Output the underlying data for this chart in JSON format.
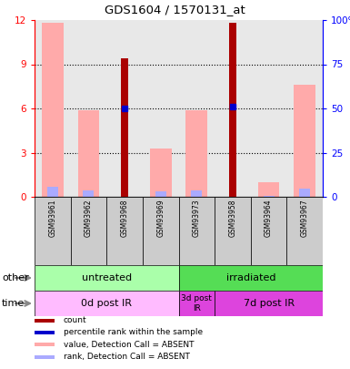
{
  "title": "GDS1604 / 1570131_at",
  "samples": [
    "GSM93961",
    "GSM93962",
    "GSM93968",
    "GSM93969",
    "GSM93973",
    "GSM93958",
    "GSM93964",
    "GSM93967"
  ],
  "count_values": [
    0,
    0,
    9.4,
    0,
    0,
    11.8,
    0,
    0
  ],
  "percentile_rank_values": [
    0,
    0,
    6.0,
    0,
    0,
    6.1,
    0,
    0
  ],
  "value_absent": [
    11.8,
    5.9,
    0,
    3.3,
    5.85,
    0,
    1.0,
    7.6
  ],
  "rank_absent": [
    5.75,
    3.5,
    0,
    3.2,
    3.5,
    0,
    0.55,
    4.55
  ],
  "count_color": "#aa0000",
  "percentile_color": "#0000cc",
  "value_absent_color": "#ffaaaa",
  "rank_absent_color": "#aaaaff",
  "ylim_left": [
    0,
    12
  ],
  "ylim_right": [
    0,
    100
  ],
  "yticks_left": [
    0,
    3,
    6,
    9,
    12
  ],
  "yticks_right": [
    0,
    25,
    50,
    75,
    100
  ],
  "ytick_labels_right": [
    "0",
    "25",
    "50",
    "75",
    "100%"
  ],
  "grid_lines": [
    3,
    6,
    9
  ],
  "other_groups": [
    {
      "label": "untreated",
      "start": 0,
      "end": 4,
      "color": "#aaffaa"
    },
    {
      "label": "irradiated",
      "start": 4,
      "end": 8,
      "color": "#55dd55"
    }
  ],
  "time_groups": [
    {
      "label": "0d post IR",
      "start": 0,
      "end": 4,
      "color": "#ffbbff"
    },
    {
      "label": "3d post\nIR",
      "start": 4,
      "end": 5,
      "color": "#dd44dd"
    },
    {
      "label": "7d post IR",
      "start": 5,
      "end": 8,
      "color": "#dd44dd"
    }
  ],
  "bar_width": 0.6,
  "count_bar_width": 0.22,
  "rank_bar_width": 0.3,
  "bg_color": "#ffffff",
  "plot_bg_color": "#ffffff",
  "col_bg_color": "#e8e8e8",
  "other_label": "other",
  "time_label": "time",
  "arrow_color": "#888888",
  "legend_items": [
    {
      "color": "#aa0000",
      "label": "count"
    },
    {
      "color": "#0000cc",
      "label": "percentile rank within the sample"
    },
    {
      "color": "#ffaaaa",
      "label": "value, Detection Call = ABSENT"
    },
    {
      "color": "#aaaaff",
      "label": "rank, Detection Call = ABSENT"
    }
  ]
}
